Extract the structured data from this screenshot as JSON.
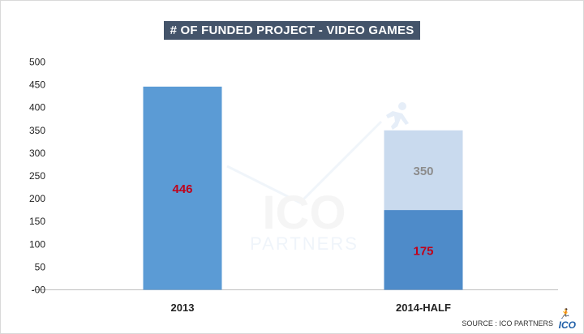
{
  "chart_data": {
    "type": "bar",
    "title": "# OF FUNDED PROJECT - VIDEO GAMES",
    "categories": [
      "2013",
      "2014-HALF"
    ],
    "series": [
      {
        "values": [
          446,
          175
        ],
        "color": "#5b9bd5"
      },
      {
        "values": [
          null,
          350
        ],
        "color": "#c9daee",
        "note_label_color": "#8c8c8c"
      }
    ],
    "data_labels": [
      "446",
      "350",
      "175"
    ],
    "ylim": [
      0,
      500
    ],
    "yticks": [
      "-00",
      "50",
      "100",
      "150",
      "200",
      "250",
      "300",
      "350",
      "400",
      "450",
      "500"
    ],
    "grid": false,
    "legend": "none"
  },
  "watermark": {
    "line1": "ICO",
    "line2": "PARTNERS"
  },
  "source": "SOURCE : ICO PARTNERS",
  "logo": "ICO",
  "colors": {
    "bar": "#5b9bd5",
    "bar_dark": "#4e8bc9",
    "projected": "#c9daee",
    "label_red": "#c0001a",
    "label_grey": "#8c8c8c",
    "title_bg": "#44546a"
  }
}
